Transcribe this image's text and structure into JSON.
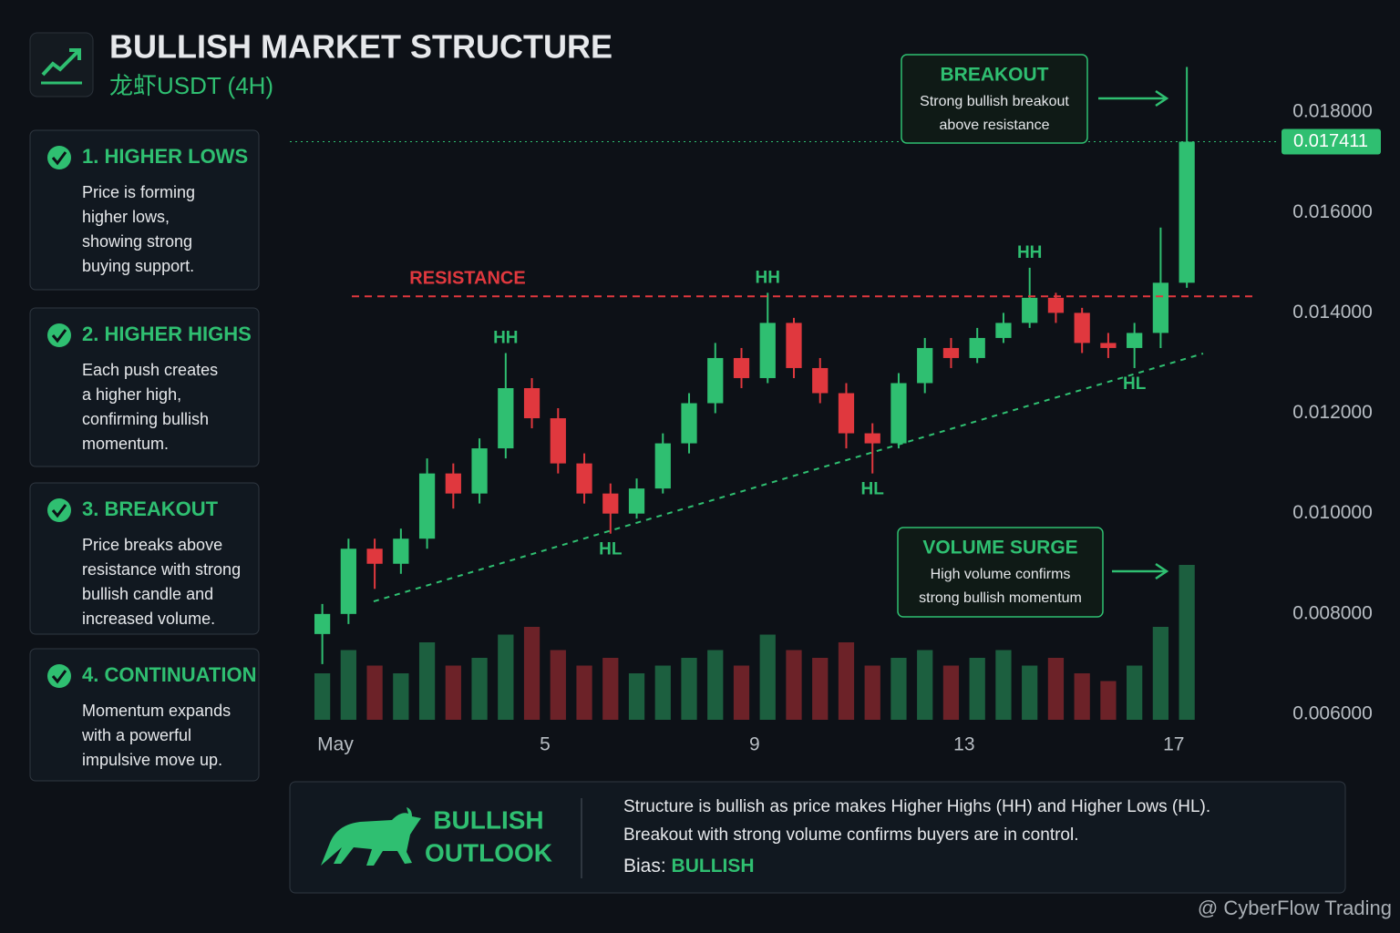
{
  "header": {
    "title": "BULLISH MARKET STRUCTURE",
    "subtitle": "龙虾USDT (4H)"
  },
  "steps": [
    {
      "title": "1. HIGHER LOWS",
      "lines": [
        "Price is forming",
        "higher lows,",
        "showing strong",
        "buying support."
      ]
    },
    {
      "title": "2. HIGHER HIGHS",
      "lines": [
        "Each push creates",
        "a higher high,",
        "confirming bullish",
        "momentum."
      ]
    },
    {
      "title": "3. BREAKOUT",
      "lines": [
        "Price breaks above",
        "resistance with strong",
        "bullish candle and",
        "increased volume."
      ]
    },
    {
      "title": "4. CONTINUATION",
      "lines": [
        "Momentum expands",
        "with a powerful",
        "impulsive move up."
      ]
    }
  ],
  "chart_data": {
    "type": "candlestick",
    "x": [
      0.75,
      1.25,
      1.75,
      2.25,
      2.75,
      3.25,
      3.75,
      4.25,
      4.75,
      5.25,
      5.75,
      6.25,
      6.75,
      7.25,
      7.75,
      8.25,
      8.75,
      9.25,
      9.75,
      10.25,
      10.75,
      11.25,
      11.75,
      12.25,
      12.75,
      13.25,
      13.75,
      14.25,
      14.75,
      15.25,
      15.75,
      16.25,
      16.75,
      17.25
    ],
    "open": [
      0.0076,
      0.008,
      0.0093,
      0.009,
      0.0095,
      0.0108,
      0.0104,
      0.0113,
      0.0125,
      0.0119,
      0.011,
      0.0104,
      0.01,
      0.0105,
      0.0114,
      0.0122,
      0.0131,
      0.0127,
      0.0138,
      0.0129,
      0.0124,
      0.0116,
      0.0114,
      0.0126,
      0.0133,
      0.0131,
      0.0135,
      0.0138,
      0.0143,
      0.014,
      0.0134,
      0.0133,
      0.0136,
      0.0146
    ],
    "high": [
      0.0082,
      0.0095,
      0.0095,
      0.0097,
      0.0111,
      0.011,
      0.0115,
      0.0132,
      0.0127,
      0.0121,
      0.0112,
      0.0106,
      0.0107,
      0.0116,
      0.0124,
      0.0134,
      0.0133,
      0.0144,
      0.0139,
      0.0131,
      0.0126,
      0.0118,
      0.0128,
      0.0135,
      0.0135,
      0.0137,
      0.014,
      0.0149,
      0.0144,
      0.0141,
      0.0136,
      0.0138,
      0.0157,
      0.0189
    ],
    "low": [
      0.007,
      0.0078,
      0.0085,
      0.0088,
      0.0093,
      0.0101,
      0.0102,
      0.0111,
      0.0117,
      0.0108,
      0.0102,
      0.0096,
      0.0099,
      0.0104,
      0.0112,
      0.012,
      0.0125,
      0.0126,
      0.0127,
      0.0122,
      0.0113,
      0.0108,
      0.0113,
      0.0124,
      0.0129,
      0.013,
      0.0134,
      0.0137,
      0.0138,
      0.0132,
      0.0131,
      0.0129,
      0.0133,
      0.0145
    ],
    "close": [
      0.008,
      0.0093,
      0.009,
      0.0095,
      0.0108,
      0.0104,
      0.0113,
      0.0125,
      0.0119,
      0.011,
      0.0104,
      0.01,
      0.0105,
      0.0114,
      0.0122,
      0.0131,
      0.0127,
      0.0138,
      0.0129,
      0.0124,
      0.0116,
      0.0114,
      0.0126,
      0.0133,
      0.0131,
      0.0135,
      0.0138,
      0.0143,
      0.014,
      0.0134,
      0.0133,
      0.0136,
      0.0146,
      0.017411
    ],
    "volume": [
      30,
      45,
      35,
      30,
      50,
      35,
      40,
      55,
      60,
      45,
      35,
      40,
      30,
      35,
      40,
      45,
      35,
      55,
      45,
      40,
      50,
      35,
      40,
      45,
      35,
      40,
      45,
      35,
      40,
      30,
      25,
      35,
      60,
      100
    ],
    "up_color": "#2fbf71",
    "down_color": "#e0383e",
    "xlim": [
      0,
      18.5
    ],
    "xticks": [
      {
        "value": 1,
        "label": "May"
      },
      5,
      9,
      13,
      17
    ],
    "ylim": [
      0.006,
      0.019
    ],
    "yticks": [
      {
        "value": 0.006,
        "label": "0.006000"
      },
      {
        "value": 0.008,
        "label": "0.008000"
      },
      {
        "value": 0.01,
        "label": "0.010000"
      },
      {
        "value": 0.012,
        "label": "0.012000"
      },
      {
        "value": 0.014,
        "label": "0.014000"
      },
      {
        "value": 0.016,
        "label": "0.016000"
      },
      {
        "value": 0.018,
        "label": "0.018000"
      }
    ],
    "resistance": {
      "label": "RESISTANCE",
      "value": 0.01433
    },
    "trendline": {
      "x": [
        1.73,
        17.56
      ],
      "y": [
        0.00825,
        0.01319
      ]
    },
    "pivots": [
      {
        "label": "HH",
        "x": 4.25,
        "y": 0.0132,
        "position": "above"
      },
      {
        "label": "HL",
        "x": 6.25,
        "y": 0.0096,
        "position": "below"
      },
      {
        "label": "HH",
        "x": 9.25,
        "y": 0.0144,
        "position": "above"
      },
      {
        "label": "HL",
        "x": 11.25,
        "y": 0.0108,
        "position": "below"
      },
      {
        "label": "HH",
        "x": 14.25,
        "y": 0.0149,
        "position": "above"
      },
      {
        "label": "HL",
        "x": 16.25,
        "y": 0.0129,
        "position": "below"
      }
    ],
    "callouts": [
      {
        "title": "BREAKOUT",
        "lines": [
          "Strong bullish breakout",
          "above resistance"
        ]
      },
      {
        "title": "VOLUME SURGE",
        "lines": [
          "High volume confirms",
          "strong bullish momentum"
        ]
      }
    ]
  },
  "outlook": {
    "title_lines": [
      "BULLISH",
      "OUTLOOK"
    ],
    "lines": [
      "Structure is bullish as price makes Higher Highs (HH) and Higher Lows (HL).",
      "Breakout with strong volume confirms buyers are in control."
    ],
    "bias_label": "Bias:",
    "bias": "BULLISH"
  },
  "watermark": "@ CyberFlow Trading"
}
